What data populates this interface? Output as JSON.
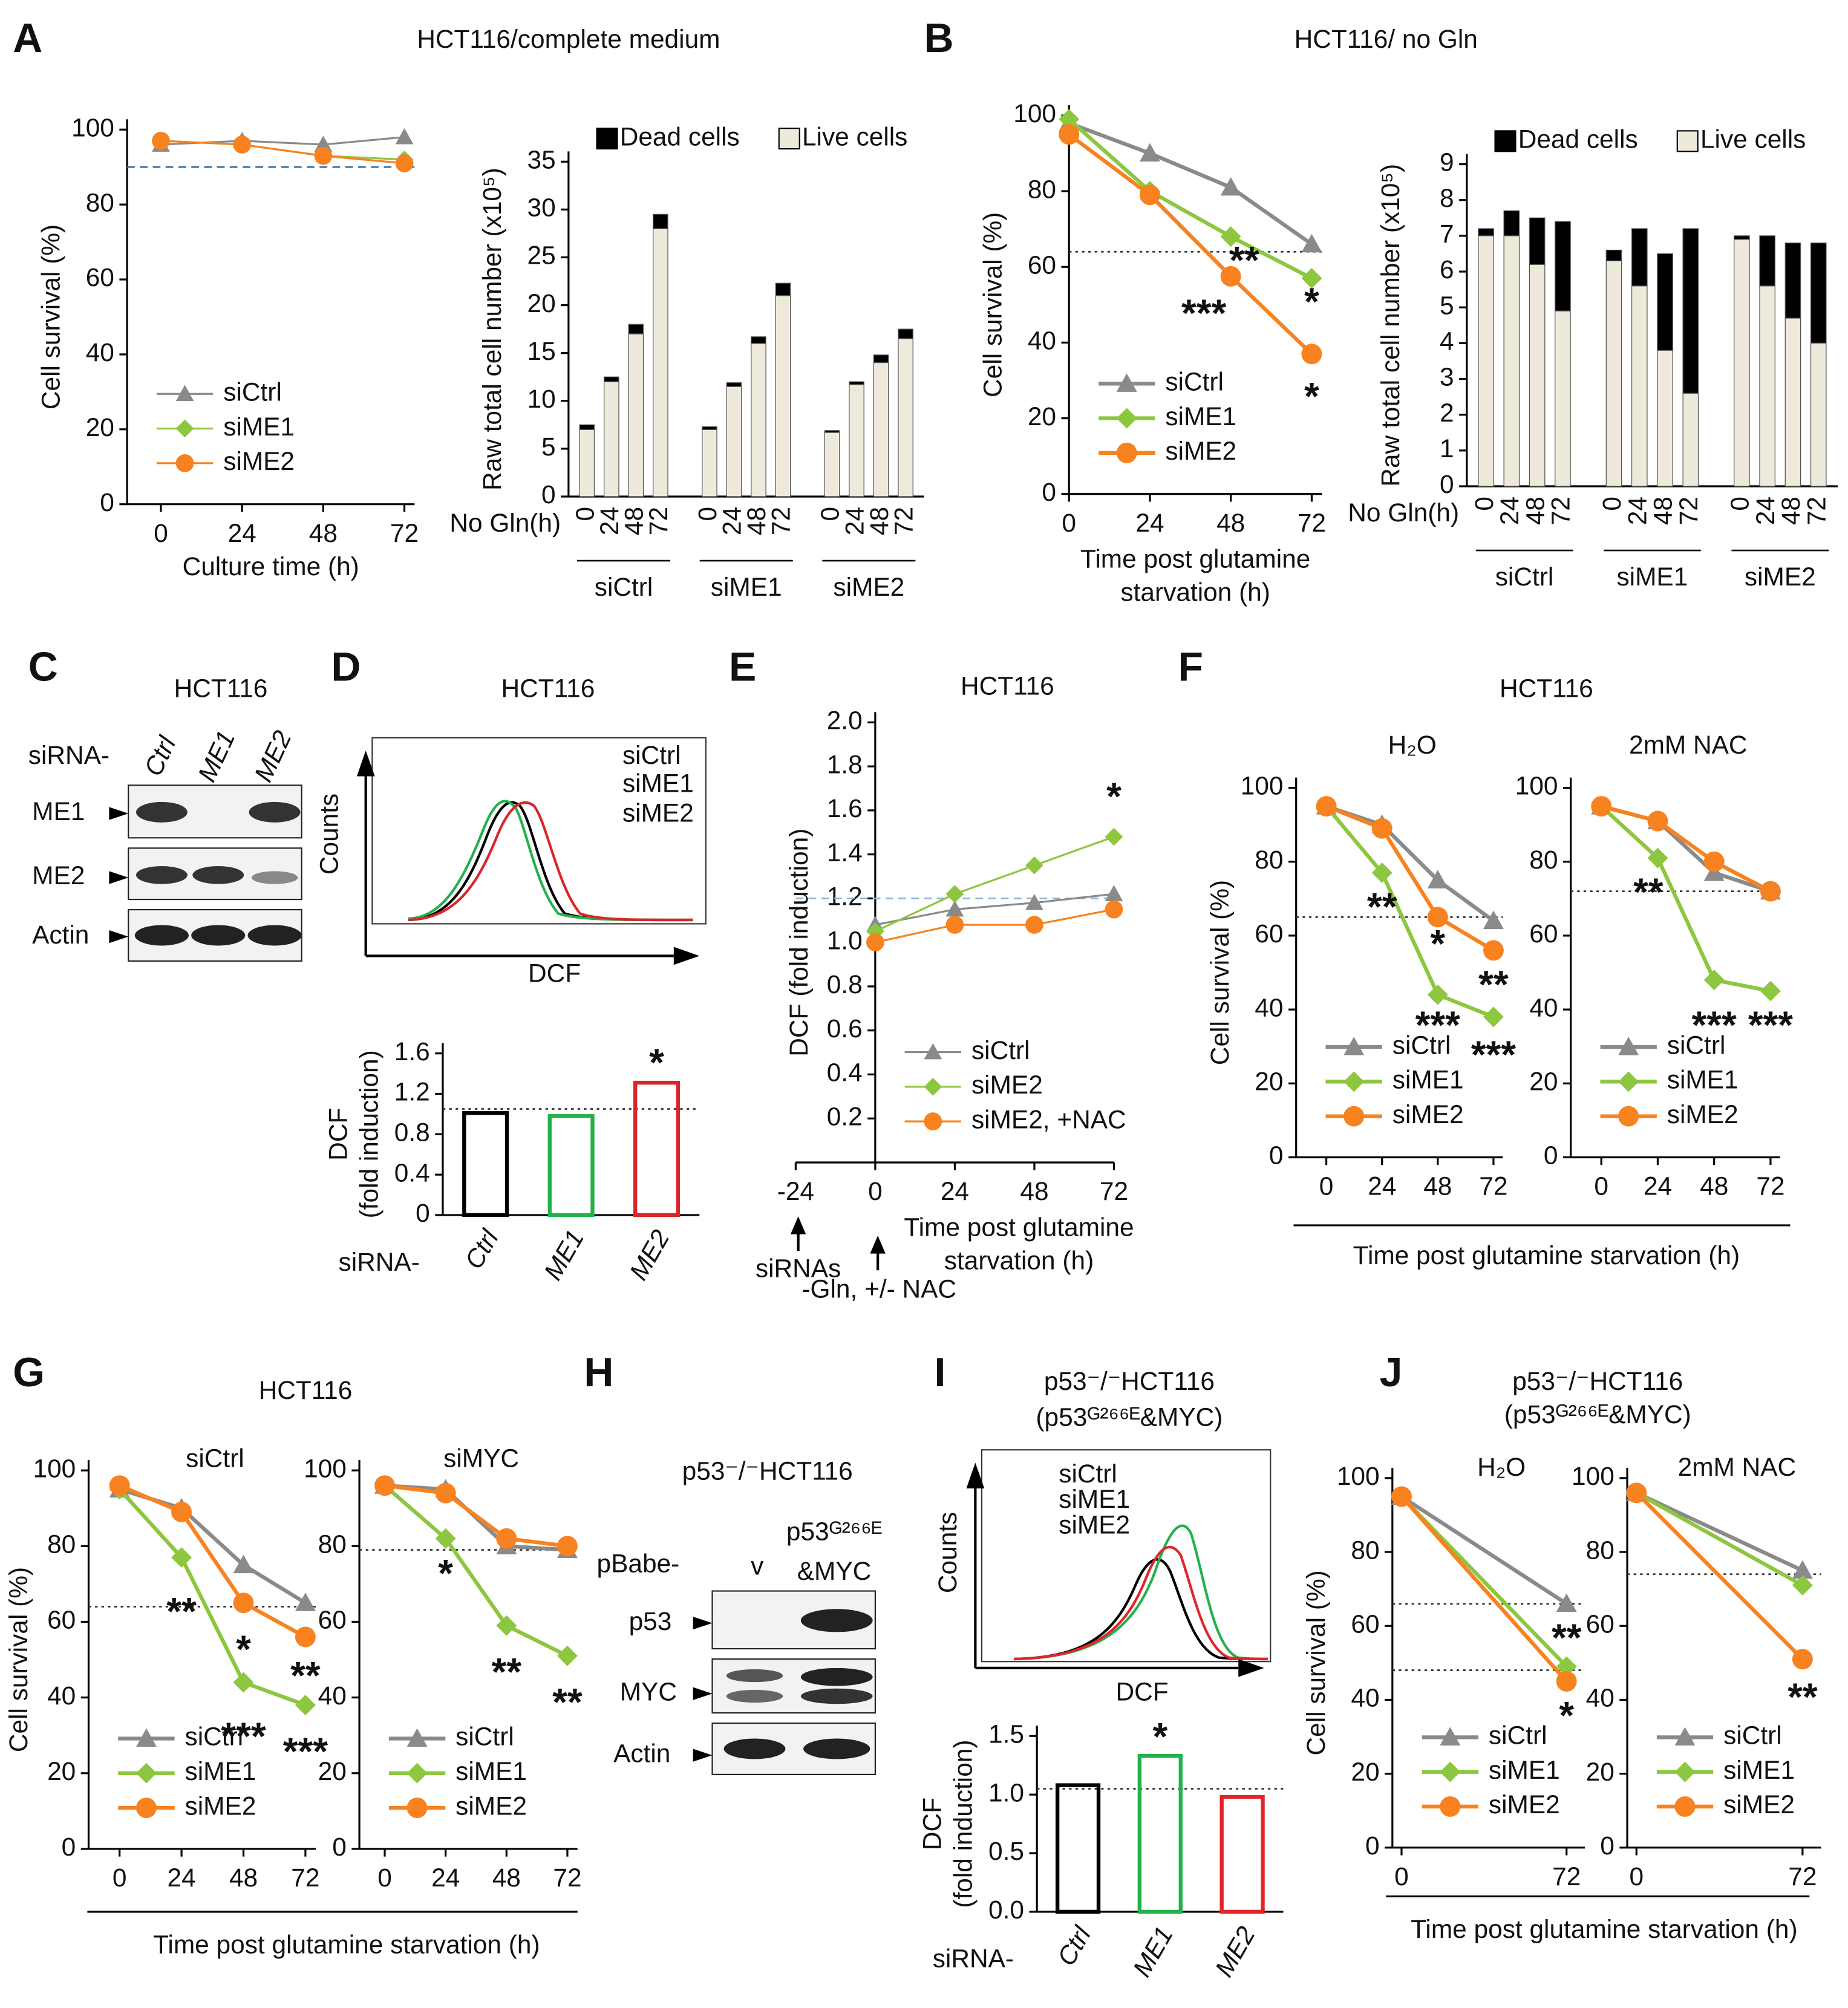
{
  "panel_letters": [
    "A",
    "B",
    "C",
    "D",
    "E",
    "F",
    "G",
    "H",
    "I",
    "J"
  ],
  "headings": {
    "a": "HCT116/complete medium",
    "b": "HCT116/ no Gln",
    "c": "HCT116",
    "d": "HCT116",
    "f": "HCT116",
    "g": "HCT116",
    "i_1": "p53⁻/⁻HCT116",
    "i_2": "(p53ᴳ²⁶⁶ᴱ&MYC)",
    "j_1": "p53⁻/⁻HCT116",
    "j_2": "(p53ᴳ²⁶⁶ᴱ&MYC)"
  },
  "shared_xlabels": {
    "f": "Time post glutamine starvation (h)",
    "g": "Time post glutamine starvation (h)",
    "j": "Time post glutamine starvation (h)"
  },
  "blot_c": {
    "row_label": "siRNA-",
    "lanes": [
      "Ctrl",
      "ME1",
      "ME2"
    ],
    "bands": [
      "ME1",
      "ME2",
      "Actin"
    ]
  },
  "blot_h": {
    "title": "p53⁻/⁻HCT116",
    "row_label": "pBabe-",
    "lanes": [
      [
        "v"
      ],
      [
        "p53ᴳ²⁶⁶ᴱ",
        "&MYC"
      ]
    ],
    "bands": [
      "p53",
      "MYC",
      "Actin"
    ]
  },
  "flow_d": {
    "ylabel": "Counts",
    "xlabel": "DCF",
    "legend": [
      "siCtrl",
      "siME1",
      "siME2"
    ]
  },
  "flow_i": {
    "ylabel": "Counts",
    "xlabel": "DCF",
    "legend": [
      "siCtrl",
      "siME1",
      "siME2"
    ]
  },
  "panel_e_notes": [
    "siRNAs",
    "-Gln, +/- NAC"
  ],
  "chart_data": [
    {
      "type": "line",
      "xlim": [
        -10,
        75
      ],
      "xticks": [
        0,
        24,
        48,
        72
      ],
      "ylim": [
        0,
        100
      ],
      "yticks": [
        0,
        20,
        40,
        60,
        80,
        100
      ],
      "x": [
        0,
        24,
        48,
        72
      ],
      "xlabel": "Culture time (h)",
      "ylabel": "Cell survival (%)",
      "legend": "lower left",
      "hlines": [
        {
          "value": 90,
          "color": "#2e75b6",
          "dash": "dashed"
        }
      ],
      "series": [
        {
          "name": "siCtrl",
          "color": "#8a8a8a",
          "marker": "triangle",
          "values": [
            96,
            97,
            96,
            98
          ]
        },
        {
          "name": "siME1",
          "color": "#8dc63f",
          "marker": "diamond",
          "values": [
            97,
            96,
            93,
            92
          ]
        },
        {
          "name": "siME2",
          "color": "#f7821f",
          "marker": "circle",
          "values": [
            97,
            96,
            93,
            91
          ]
        }
      ]
    },
    {
      "type": "stacked_bar",
      "ylim": [
        0,
        35
      ],
      "yticks": [
        0,
        5,
        10,
        15,
        20,
        25,
        30,
        35
      ],
      "ylabel": "Raw total cell number (x10⁵)",
      "xlabel": "No Gln(h)",
      "categories": [
        "0",
        "24",
        "48",
        "72",
        "0",
        "24",
        "48",
        "72",
        "0",
        "24",
        "48",
        "72"
      ],
      "groups": [
        "siCtrl",
        "siME1",
        "siME2"
      ],
      "series": [
        {
          "name": "Live cells",
          "color": "#eeeadb",
          "values": [
            7,
            12,
            17,
            28,
            7,
            11.5,
            16,
            21,
            6.7,
            11.7,
            14,
            16.5
          ]
        },
        {
          "name": "Dead cells",
          "color": "#000000",
          "values": [
            0.5,
            0.5,
            1,
            1.5,
            0.3,
            0.4,
            0.7,
            1.3,
            0.2,
            0.3,
            0.8,
            1
          ]
        }
      ]
    },
    {
      "type": "line",
      "xlim": [
        0,
        75
      ],
      "xticks": [
        0,
        24,
        48,
        72
      ],
      "ylim": [
        0,
        100
      ],
      "yticks": [
        0,
        20,
        40,
        60,
        80,
        100
      ],
      "x": [
        0,
        24,
        48,
        72
      ],
      "xlabel": [
        "Time post glutamine",
        "starvation (h)"
      ],
      "ylabel": "Cell survival (%)",
      "legend": "lower left",
      "hlines": [
        {
          "value": 64,
          "color": "#333333",
          "dash": "dotted"
        }
      ],
      "series": [
        {
          "name": "siCtrl",
          "color": "#8a8a8a",
          "marker": "triangle",
          "values": [
            98,
            90,
            81,
            66
          ]
        },
        {
          "name": "siME1",
          "color": "#8dc63f",
          "marker": "diamond",
          "values": [
            99,
            80,
            68,
            57
          ]
        },
        {
          "name": "siME2",
          "color": "#f7821f",
          "marker": "circle",
          "values": [
            95,
            79,
            57.5,
            37
          ]
        }
      ],
      "annotations": [
        {
          "text": "**",
          "x": 52,
          "y": 61,
          "color": "#8dc63f"
        },
        {
          "text": "***",
          "x": 40,
          "y": 47,
          "color": "#f7821f"
        },
        {
          "text": "*",
          "x": 72,
          "y": 50,
          "color": "#8dc63f"
        },
        {
          "text": "*",
          "x": 72,
          "y": 25,
          "color": "#f7821f"
        }
      ]
    },
    {
      "type": "stacked_bar",
      "ylim": [
        0,
        9
      ],
      "yticks": [
        0,
        1,
        2,
        3,
        4,
        5,
        6,
        7,
        8,
        9
      ],
      "ylabel": "Raw total cell number (x10⁵)",
      "xlabel": "No Gln(h)",
      "categories": [
        "0",
        "24",
        "48",
        "72",
        "0",
        "24",
        "48",
        "72",
        "0",
        "24",
        "48",
        "72"
      ],
      "groups": [
        "siCtrl",
        "siME1",
        "siME2"
      ],
      "series": [
        {
          "name": "Live cells",
          "color": "#eeeadb",
          "values": [
            7,
            7,
            6.2,
            4.9,
            6.3,
            5.6,
            3.8,
            2.6,
            6.9,
            5.6,
            4.7,
            4
          ]
        },
        {
          "name": "Dead cells",
          "color": "#000000",
          "values": [
            0.2,
            0.7,
            1.3,
            2.5,
            0.3,
            1.6,
            2.7,
            4.6,
            0.1,
            1.4,
            2.1,
            2.8
          ]
        }
      ]
    },
    {
      "type": "bar",
      "ylim": [
        0,
        1.6
      ],
      "yticks": [
        0,
        0.4,
        0.8,
        1.2,
        1.6
      ],
      "ylabel": [
        "DCF",
        "(fold induction)"
      ],
      "xlabel": "siRNA-",
      "categories": [
        "Ctrl",
        "ME1",
        "ME2"
      ],
      "values": [
        1.01,
        0.98,
        1.31
      ],
      "colors": [
        "#000000",
        "#22b14c",
        "#d9262b"
      ],
      "hlines": [
        {
          "value": 1.05,
          "color": "#333333",
          "dash": "dotted"
        }
      ],
      "annotations": [
        {
          "text": "*",
          "category": "ME2",
          "y": 1.48,
          "color": "#d9262b"
        }
      ]
    },
    {
      "type": "line",
      "title": "HCT116",
      "xlim": [
        -24,
        72
      ],
      "y_axis_at": 0,
      "xticks": [
        -24,
        0,
        24,
        48,
        72
      ],
      "ylim": [
        0,
        2
      ],
      "yticks": [
        0.2,
        0.4,
        0.6,
        0.8,
        {
          "value": 1,
          "label": "1.0"
        },
        1.2,
        1.4,
        1.6,
        1.8,
        {
          "value": 2,
          "label": "2.0"
        }
      ],
      "x": [
        0,
        24,
        48,
        72
      ],
      "xlabel": [
        "Time post glutamine",
        "starvation (h)"
      ],
      "ylabel": "DCF (fold induction)",
      "legend": "lower left",
      "hlines": [
        {
          "value": 1.2,
          "color": "#8fb4e0",
          "dash": "dashed"
        }
      ],
      "series": [
        {
          "name": "siCtrl",
          "color": "#8a8a8a",
          "marker": "triangle",
          "values": [
            1.08,
            1.15,
            1.18,
            1.22
          ]
        },
        {
          "name": "siME2",
          "color": "#8dc63f",
          "marker": "diamond",
          "values": [
            1.05,
            1.22,
            1.35,
            1.48
          ]
        },
        {
          "name": "siME2, +NAC",
          "color": "#f7821f",
          "marker": "circle",
          "values": [
            1,
            1.08,
            1.08,
            1.15
          ]
        }
      ],
      "annotations": [
        {
          "text": "*",
          "x": 72,
          "y": 1.65,
          "color": "#8dc63f"
        }
      ]
    },
    {
      "type": "line",
      "title": "H₂O",
      "xlim": [
        -13,
        76
      ],
      "xticks": [
        0,
        24,
        48,
        72
      ],
      "ylim": [
        0,
        100
      ],
      "yticks": [
        0,
        20,
        40,
        60,
        80,
        100
      ],
      "x": [
        0,
        24,
        48,
        72
      ],
      "ylabel": "Cell survival (%)",
      "legend": "lower left",
      "hlines": [
        {
          "value": 65,
          "color": "#333333",
          "dash": "dotted"
        }
      ],
      "series": [
        {
          "name": "siCtrl",
          "color": "#8a8a8a",
          "marker": "triangle",
          "values": [
            95,
            90,
            75,
            64
          ]
        },
        {
          "name": "siME1",
          "color": "#8dc63f",
          "marker": "diamond",
          "values": [
            95,
            77,
            44,
            38
          ]
        },
        {
          "name": "siME2",
          "color": "#f7821f",
          "marker": "circle",
          "values": [
            95,
            89,
            65,
            56
          ]
        }
      ],
      "annotations": [
        {
          "text": "**",
          "x": 24,
          "y": 67,
          "color": "#8dc63f"
        },
        {
          "text": "*",
          "x": 48,
          "y": 57,
          "color": "#f7821f"
        },
        {
          "text": "***",
          "x": 48,
          "y": 35,
          "color": "#8dc63f"
        },
        {
          "text": "**",
          "x": 72,
          "y": 46,
          "color": "#f7821f"
        },
        {
          "text": "***",
          "x": 72,
          "y": 27,
          "color": "#8dc63f"
        }
      ]
    },
    {
      "type": "line",
      "title": "2mM NAC",
      "xlim": [
        -13,
        76
      ],
      "xticks": [
        0,
        24,
        48,
        72
      ],
      "ylim": [
        0,
        100
      ],
      "yticks": [
        0,
        20,
        40,
        60,
        80,
        100
      ],
      "x": [
        0,
        24,
        48,
        72
      ],
      "legend": "lower left",
      "hlines": [
        {
          "value": 72,
          "color": "#333333",
          "dash": "dotted"
        }
      ],
      "series": [
        {
          "name": "siCtrl",
          "color": "#8a8a8a",
          "marker": "triangle",
          "values": [
            95,
            91,
            77,
            72
          ]
        },
        {
          "name": "siME1",
          "color": "#8dc63f",
          "marker": "diamond",
          "values": [
            95,
            81,
            48,
            45
          ]
        },
        {
          "name": "siME2",
          "color": "#f7821f",
          "marker": "circle",
          "values": [
            95,
            91,
            80,
            72
          ]
        }
      ],
      "annotations": [
        {
          "text": "**",
          "x": 20,
          "y": 71,
          "color": "#8dc63f"
        },
        {
          "text": "***",
          "x": 48,
          "y": 35,
          "color": "#8dc63f"
        },
        {
          "text": "***",
          "x": 72,
          "y": 35,
          "color": "#8dc63f"
        }
      ]
    },
    {
      "type": "line",
      "title": "siCtrl",
      "xlim": [
        -12,
        76
      ],
      "xticks": [
        0,
        24,
        48,
        72
      ],
      "ylim": [
        0,
        100
      ],
      "yticks": [
        0,
        20,
        40,
        60,
        80,
        100
      ],
      "x": [
        0,
        24,
        48,
        72
      ],
      "ylabel": "Cell survival (%)",
      "legend": "lower left",
      "hlines": [
        {
          "value": 64,
          "color": "#333333",
          "dash": "dotted"
        }
      ],
      "series": [
        {
          "name": "siCtrl",
          "color": "#8a8a8a",
          "marker": "triangle",
          "values": [
            95,
            90,
            75,
            65
          ]
        },
        {
          "name": "siME1",
          "color": "#8dc63f",
          "marker": "diamond",
          "values": [
            95,
            77,
            44,
            38
          ]
        },
        {
          "name": "siME2",
          "color": "#f7821f",
          "marker": "circle",
          "values": [
            96,
            89,
            65,
            56
          ]
        }
      ],
      "annotations": [
        {
          "text": "**",
          "x": 24,
          "y": 62,
          "color": "#8dc63f"
        },
        {
          "text": "*",
          "x": 48,
          "y": 52,
          "color": "#f7821f"
        },
        {
          "text": "***",
          "x": 48,
          "y": 29,
          "color": "#8dc63f"
        },
        {
          "text": "**",
          "x": 72,
          "y": 45,
          "color": "#f7821f"
        },
        {
          "text": "***",
          "x": 72,
          "y": 25,
          "color": "#8dc63f"
        }
      ]
    },
    {
      "type": "line",
      "title": "siMYC",
      "xlim": [
        -10,
        76
      ],
      "xticks": [
        0,
        24,
        48,
        72
      ],
      "ylim": [
        0,
        100
      ],
      "yticks": [
        0,
        20,
        40,
        60,
        80,
        100
      ],
      "x": [
        0,
        24,
        48,
        72
      ],
      "legend": "lower left",
      "hlines": [
        {
          "value": 79,
          "color": "#333333",
          "dash": "dotted"
        }
      ],
      "series": [
        {
          "name": "siCtrl",
          "color": "#8a8a8a",
          "marker": "triangle",
          "values": [
            96,
            95,
            80,
            79
          ]
        },
        {
          "name": "siME1",
          "color": "#8dc63f",
          "marker": "diamond",
          "values": [
            96,
            82,
            59,
            51
          ]
        },
        {
          "name": "siME2",
          "color": "#f7821f",
          "marker": "circle",
          "values": [
            96,
            94,
            82,
            80
          ]
        }
      ],
      "annotations": [
        {
          "text": "*",
          "x": 24,
          "y": 72,
          "color": "#8dc63f"
        },
        {
          "text": "**",
          "x": 48,
          "y": 46,
          "color": "#8dc63f"
        },
        {
          "text": "**",
          "x": 72,
          "y": 38,
          "color": "#8dc63f"
        }
      ]
    },
    {
      "type": "bar",
      "ylim": [
        0,
        1.5
      ],
      "yticks": [
        {
          "value": 0,
          "label": "0.0"
        },
        0.5,
        {
          "value": 1,
          "label": "1.0"
        },
        1.5
      ],
      "ylabel": [
        "DCF",
        "(fold induction)"
      ],
      "xlabel": "siRNA-",
      "categories": [
        "Ctrl",
        "ME1",
        "ME2"
      ],
      "values": [
        1.08,
        1.33,
        0.98
      ],
      "colors": [
        "#000000",
        "#22b14c",
        "#e0262b"
      ],
      "hlines": [
        {
          "value": 1.05,
          "color": "#333333",
          "dash": "dotted"
        }
      ],
      "annotations": [
        {
          "text": "*",
          "category": "ME1",
          "y": 1.47,
          "color": "#22b14c"
        }
      ]
    },
    {
      "type": "line",
      "title": "H₂O",
      "xlim": [
        -4,
        80
      ],
      "xticks": [
        0,
        72
      ],
      "ylim": [
        0,
        100
      ],
      "yticks": [
        0,
        20,
        40,
        60,
        80,
        100
      ],
      "x": [
        0,
        72
      ],
      "ylabel": "Cell survival (%)",
      "legend": "lower left",
      "hlines": [
        {
          "value": 66,
          "color": "#333333",
          "dash": "dotted"
        },
        {
          "value": 48,
          "color": "#333333",
          "dash": "dotted"
        }
      ],
      "series": [
        {
          "name": "siCtrl",
          "color": "#8a8a8a",
          "marker": "triangle",
          "values": [
            95,
            66
          ]
        },
        {
          "name": "siME1",
          "color": "#8dc63f",
          "marker": "diamond",
          "values": [
            95,
            49
          ]
        },
        {
          "name": "siME2",
          "color": "#f7821f",
          "marker": "circle",
          "values": [
            95,
            45
          ]
        }
      ],
      "annotations": [
        {
          "text": "**",
          "x": 72,
          "y": 56,
          "color": "#8dc63f"
        },
        {
          "text": "*",
          "x": 72,
          "y": 35,
          "color": "#f7821f"
        }
      ]
    },
    {
      "type": "line",
      "title": "2mM NAC",
      "xlim": [
        -4,
        80
      ],
      "xticks": [
        0,
        72
      ],
      "ylim": [
        0,
        100
      ],
      "yticks": [
        0,
        20,
        40,
        60,
        80,
        100
      ],
      "x": [
        0,
        72
      ],
      "legend": "lower left",
      "hlines": [
        {
          "value": 74,
          "color": "#333333",
          "dash": "dotted"
        }
      ],
      "series": [
        {
          "name": "siCtrl",
          "color": "#8a8a8a",
          "marker": "triangle",
          "values": [
            96,
            75
          ]
        },
        {
          "name": "siME1",
          "color": "#8dc63f",
          "marker": "diamond",
          "values": [
            96,
            71
          ]
        },
        {
          "name": "siME2",
          "color": "#f7821f",
          "marker": "circle",
          "values": [
            96,
            51
          ]
        }
      ],
      "annotations": [
        {
          "text": "**",
          "x": 72,
          "y": 40,
          "color": "#f7821f"
        }
      ]
    }
  ]
}
